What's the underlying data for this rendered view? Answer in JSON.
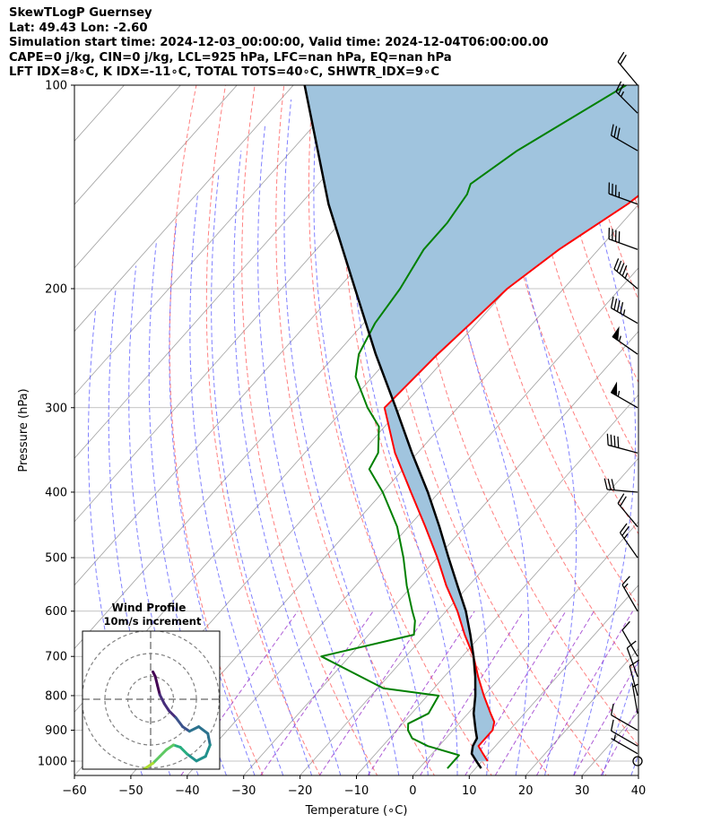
{
  "header": {
    "line1": "SkewTLogP Guernsey",
    "line2": "Lat: 49.43   Lon: -2.60",
    "line3": "Simulation start time: 2024-12-03_00:00:00, Valid time: 2024-12-04T06:00:00.00",
    "line4": "CAPE=0 j/kg, CIN=0 j/kg, LCL=925 hPa, LFC=nan hPa, EQ=nan hPa",
    "line5": "LFT IDX=8∘C, K IDX=-11∘C, TOTAL TOTS=40∘C, SHWTR_IDX=9∘C"
  },
  "chart_data": {
    "type": "skewt-logp",
    "xlabel": "Temperature (∘C)",
    "ylabel": "Pressure (hPa)",
    "xlim": [
      -60,
      40
    ],
    "ylim": [
      1050,
      100
    ],
    "x_ticks": [
      -60,
      -50,
      -40,
      -30,
      -20,
      -10,
      0,
      10,
      20,
      30,
      40
    ],
    "y_ticks": [
      1000,
      900,
      800,
      700,
      600,
      500,
      400,
      300,
      200,
      100
    ],
    "grid": true,
    "colors": {
      "temperature": "#ff0000",
      "dewpoint": "#008000",
      "parcel": "#000000",
      "cape_cin_fill": "#a0c4de",
      "dry_adiabats": "#ff4a4a",
      "moist_adiabats": "#4a4aff",
      "mixing_ratio": "#9932cc",
      "isotherms": "#808080"
    },
    "temperature": {
      "p": [
        1000,
        975,
        950,
        925,
        900,
        875,
        850,
        800,
        750,
        700,
        650,
        600,
        550,
        500,
        450,
        400,
        350,
        300,
        250,
        225,
        200,
        175,
        150,
        125,
        110,
        100
      ],
      "t": [
        11,
        9,
        7,
        7,
        7,
        6,
        4,
        0,
        -4,
        -8,
        -13,
        -18,
        -24,
        -30,
        -37,
        -45,
        -54,
        -63,
        -62,
        -61,
        -60,
        -57,
        -52,
        -48,
        -47,
        -46
      ]
    },
    "dewpoint": {
      "p": [
        1025,
        980,
        950,
        925,
        900,
        880,
        850,
        800,
        780,
        700,
        650,
        620,
        600,
        550,
        500,
        450,
        400,
        370,
        350,
        320,
        300,
        270,
        250,
        225,
        200,
        175,
        160,
        145,
        140,
        125,
        100
      ],
      "td": [
        5,
        5,
        -2,
        -6,
        -8,
        -9,
        -7,
        -8,
        -19,
        -35,
        -22,
        -24,
        -26,
        -31,
        -36,
        -42,
        -50,
        -56,
        -57,
        -61,
        -66,
        -73,
        -76,
        -78,
        -79,
        -81,
        -81,
        -82,
        -83,
        -80,
        -71
      ]
    },
    "parcel": {
      "p": [
        1025,
        1000,
        975,
        950,
        925,
        900,
        850,
        800,
        750,
        700,
        650,
        600,
        550,
        500,
        450,
        400,
        350,
        300,
        250,
        200,
        150,
        100
      ],
      "t": [
        11,
        9,
        7,
        6,
        5.5,
        4,
        1,
        -1.5,
        -4.5,
        -8,
        -12,
        -16.5,
        -22,
        -28,
        -34.5,
        -42,
        -51,
        -61,
        -73,
        -87,
        -105,
        -128
      ]
    },
    "wind_barbs": [
      {
        "p": 1000,
        "speed_kt": 0,
        "dir_deg": 0
      },
      {
        "p": 975,
        "speed_kt": 5,
        "dir_deg": 300
      },
      {
        "p": 950,
        "speed_kt": 10,
        "dir_deg": 300
      },
      {
        "p": 900,
        "speed_kt": 10,
        "dir_deg": 300
      },
      {
        "p": 850,
        "speed_kt": 5,
        "dir_deg": 350
      },
      {
        "p": 800,
        "speed_kt": 10,
        "dir_deg": 345
      },
      {
        "p": 750,
        "speed_kt": 10,
        "dir_deg": 340
      },
      {
        "p": 700,
        "speed_kt": 10,
        "dir_deg": 330
      },
      {
        "p": 600,
        "speed_kt": 15,
        "dir_deg": 330
      },
      {
        "p": 500,
        "speed_kt": 25,
        "dir_deg": 325
      },
      {
        "p": 450,
        "speed_kt": 20,
        "dir_deg": 320
      },
      {
        "p": 400,
        "speed_kt": 30,
        "dir_deg": 275
      },
      {
        "p": 350,
        "speed_kt": 40,
        "dir_deg": 285
      },
      {
        "p": 300,
        "speed_kt": 55,
        "dir_deg": 300
      },
      {
        "p": 250,
        "speed_kt": 55,
        "dir_deg": 305
      },
      {
        "p": 225,
        "speed_kt": 45,
        "dir_deg": 300
      },
      {
        "p": 200,
        "speed_kt": 45,
        "dir_deg": 310
      },
      {
        "p": 175,
        "speed_kt": 40,
        "dir_deg": 290
      },
      {
        "p": 150,
        "speed_kt": 35,
        "dir_deg": 290
      },
      {
        "p": 125,
        "speed_kt": 30,
        "dir_deg": 300
      },
      {
        "p": 110,
        "speed_kt": 25,
        "dir_deg": 315
      },
      {
        "p": 100,
        "speed_kt": 20,
        "dir_deg": 320
      }
    ],
    "hodograph": {
      "title": "Wind Profile",
      "subtitle": "10m/s increment",
      "ring_increment_ms": 10,
      "rings": [
        10,
        20,
        30
      ],
      "u": [
        1,
        2,
        3,
        4,
        6,
        8,
        11,
        14,
        17,
        21,
        25,
        26,
        24,
        20,
        16,
        13,
        10,
        7,
        4,
        1,
        -2,
        -5,
        -8,
        -10,
        -12,
        -14
      ],
      "v": [
        12,
        10,
        6,
        2,
        -2,
        -5,
        -8,
        -12,
        -14,
        -12,
        -15,
        -20,
        -25,
        -27,
        -24,
        -21,
        -20,
        -22,
        -25,
        -28,
        -30,
        -32,
        -34,
        -36,
        -38,
        -40
      ]
    }
  }
}
